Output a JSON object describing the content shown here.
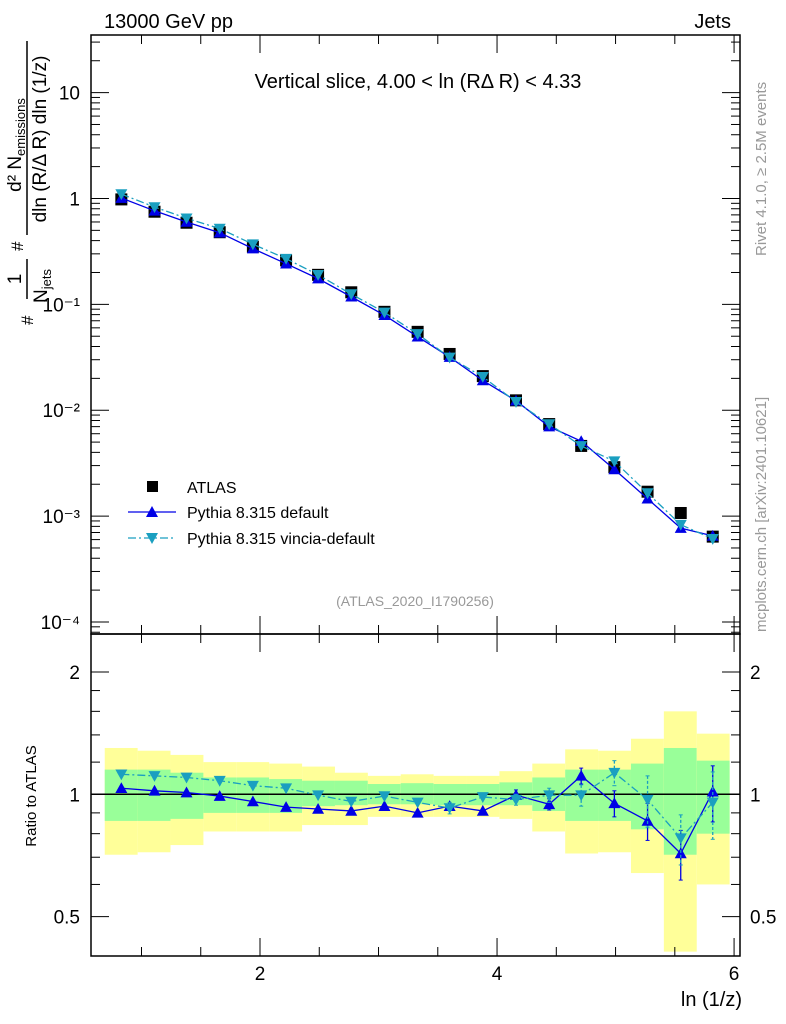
{
  "header": {
    "left": "13000 GeV pp",
    "right": "Jets"
  },
  "side_text": {
    "rivet": "Rivet 4.1.0, ≥ 2.5M events",
    "mcplots": "mcplots.cern.ch [arXiv:2401.10621]"
  },
  "chart_data": [
    {
      "type": "line",
      "title": "Vertical slice, 4.00 < ln (RΔ R) < 4.33",
      "annotation": "(ATLAS_2020_I1790256)",
      "ylabel": {
        "hash": "#",
        "num1": "1",
        "den1": "N",
        "den1_sub": "jets",
        "num2": "d² N",
        "num2_sub": "emissions",
        "den2": "dln (R/Δ R) dln (1/z)"
      },
      "yscale": "log",
      "ylim": [
        7.7e-05,
        35
      ],
      "xlim": [
        0.574,
        6.05
      ],
      "yticks": [
        {
          "v": 10,
          "label": "10"
        },
        {
          "v": 1,
          "label": "1"
        },
        {
          "v": 0.1,
          "label": "10⁻¹"
        },
        {
          "v": 0.01,
          "label": "10⁻²"
        },
        {
          "v": 0.001,
          "label": "10⁻³"
        },
        {
          "v": 0.0001,
          "label": "10⁻⁴"
        }
      ],
      "x": [
        0.83,
        1.11,
        1.38,
        1.66,
        1.94,
        2.22,
        2.49,
        2.77,
        3.05,
        3.33,
        3.6,
        3.88,
        4.16,
        4.44,
        4.71,
        4.99,
        5.27,
        5.55,
        5.82
      ],
      "legend_position": "bottom-left",
      "series": [
        {
          "name": "ATLAS",
          "color": "#000000",
          "marker": "square",
          "values": [
            0.98,
            0.75,
            0.59,
            0.48,
            0.35,
            0.26,
            0.19,
            0.13,
            0.085,
            0.055,
            0.034,
            0.021,
            0.0124,
            0.0074,
            0.0046,
            0.0029,
            0.0017,
            0.00107,
            0.00064
          ]
        },
        {
          "name": "Pythia 8.315 default",
          "color": "#0000e6",
          "marker": "triangle-up",
          "line": "solid",
          "values": [
            1.01,
            0.765,
            0.6,
            0.475,
            0.336,
            0.242,
            0.175,
            0.118,
            0.079,
            0.0495,
            0.0318,
            0.0191,
            0.0123,
            0.007,
            0.0051,
            0.00276,
            0.00146,
            0.00077,
            0.00065
          ]
        },
        {
          "name": "Pythia 8.315 vincia-default",
          "color": "#1a9fc0",
          "marker": "triangle-down",
          "line": "dashdot",
          "values": [
            1.1,
            0.83,
            0.65,
            0.52,
            0.37,
            0.27,
            0.19,
            0.125,
            0.084,
            0.0525,
            0.0315,
            0.0207,
            0.012,
            0.0074,
            0.0046,
            0.0033,
            0.00165,
            0.00083,
            0.00061
          ]
        }
      ]
    },
    {
      "type": "line",
      "ylabel": "Ratio to ATLAS",
      "xlabel": "ln (1/z)",
      "yscale": "log",
      "ylim": [
        0.4,
        2.48
      ],
      "xlim": [
        0.574,
        6.05
      ],
      "xticks": [
        {
          "v": 2,
          "label": "2"
        },
        {
          "v": 4,
          "label": "4"
        },
        {
          "v": 6,
          "label": "6"
        }
      ],
      "yticks": [
        {
          "v": 2,
          "label": "2"
        },
        {
          "v": 1,
          "label": "1"
        },
        {
          "v": 0.5,
          "label": "0.5"
        }
      ],
      "bin_edges": [
        0.69,
        0.9675,
        1.245,
        1.5225,
        1.8,
        2.0775,
        2.355,
        2.6325,
        2.91,
        3.1875,
        3.465,
        3.7425,
        4.02,
        4.2975,
        4.575,
        4.8525,
        5.13,
        5.4075,
        5.685,
        5.9625
      ],
      "bands": {
        "yellow_color": "#ffff99",
        "green_color": "#99ff99",
        "yellow_upper": [
          1.3,
          1.28,
          1.25,
          1.2,
          1.2,
          1.19,
          1.17,
          1.13,
          1.11,
          1.12,
          1.11,
          1.11,
          1.14,
          1.19,
          1.29,
          1.28,
          1.37,
          1.6,
          1.41
        ],
        "yellow_lower": [
          0.71,
          0.72,
          0.75,
          0.81,
          0.81,
          0.81,
          0.84,
          0.84,
          0.88,
          0.88,
          0.88,
          0.88,
          0.87,
          0.81,
          0.715,
          0.72,
          0.64,
          0.41,
          0.6
        ],
        "green_upper": [
          1.15,
          1.15,
          1.13,
          1.1,
          1.1,
          1.09,
          1.08,
          1.08,
          1.06,
          1.065,
          1.06,
          1.06,
          1.07,
          1.1,
          1.15,
          1.15,
          1.19,
          1.3,
          1.21
        ],
        "green_lower": [
          0.86,
          0.86,
          0.87,
          0.9,
          0.9,
          0.9,
          0.935,
          0.94,
          0.945,
          0.945,
          0.94,
          0.94,
          0.94,
          0.91,
          0.86,
          0.86,
          0.82,
          0.71,
          0.8
        ]
      },
      "series": [
        {
          "name": "Pythia 8.315 default",
          "color": "#0000e6",
          "marker": "triangle-up",
          "line": "solid",
          "values": [
            1.035,
            1.02,
            1.01,
            0.99,
            0.96,
            0.93,
            0.92,
            0.91,
            0.935,
            0.9,
            0.935,
            0.91,
            0.995,
            0.945,
            1.11,
            0.95,
            0.86,
            0.715,
            1.015
          ],
          "errors": [
            0,
            0,
            0,
            0,
            0,
            0,
            0,
            0,
            0,
            0,
            0,
            0,
            0.03,
            0.03,
            0.05,
            0.07,
            0.09,
            0.1,
            0.16
          ]
        },
        {
          "name": "Pythia 8.315 vincia-default",
          "color": "#1a9fc0",
          "marker": "triangle-down",
          "line": "dashdot",
          "values": [
            1.12,
            1.11,
            1.1,
            1.08,
            1.05,
            1.035,
            0.995,
            0.96,
            0.99,
            0.955,
            0.925,
            0.985,
            0.97,
            0.995,
            0.995,
            1.13,
            0.97,
            0.78,
            0.955
          ],
          "errors": [
            0,
            0,
            0,
            0,
            0,
            0,
            0,
            0,
            0,
            0,
            0.03,
            0,
            0.03,
            0.04,
            0.06,
            0.08,
            0.14,
            0.11,
            0.18
          ]
        }
      ]
    }
  ]
}
